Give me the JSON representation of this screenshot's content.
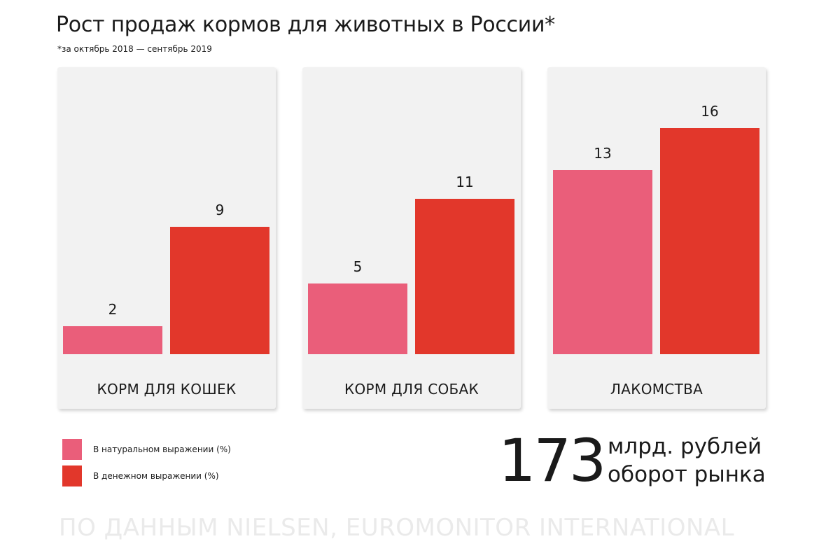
{
  "title": "Рост продаж кормов для животных в России*",
  "subtitle": "*за октябрь 2018 — сентябрь 2019",
  "colors": {
    "natural": "#ea5e7a",
    "monetary": "#e2372b",
    "panel": "#f2f2f2"
  },
  "chart_data": {
    "type": "bar",
    "categories": [
      "КОРМ ДЛЯ КОШЕК",
      "КОРМ ДЛЯ СОБАК",
      "ЛАКОМСТВА"
    ],
    "series": [
      {
        "name": "В натуральном выражении (%)",
        "values": [
          2,
          5,
          13
        ]
      },
      {
        "name": "В денежном выражении (%)",
        "values": [
          9,
          11,
          16
        ]
      }
    ],
    "title": "Рост продаж кормов для животных в России*",
    "ylim": [
      0,
      20
    ],
    "grid": false,
    "legend": "bottom-left"
  },
  "legend": [
    {
      "label": "В натуральном выражении (%)",
      "color": "#ea5e7a"
    },
    {
      "label": "В денежном выражении (%)",
      "color": "#e2372b"
    }
  ],
  "stat": {
    "value": "173",
    "unit_line1": "млрд. рублей",
    "unit_line2": "оборот рынка"
  },
  "footer": "ПО ДАННЫМ NIELSEN, EUROMONITOR INTERNATIONAL"
}
